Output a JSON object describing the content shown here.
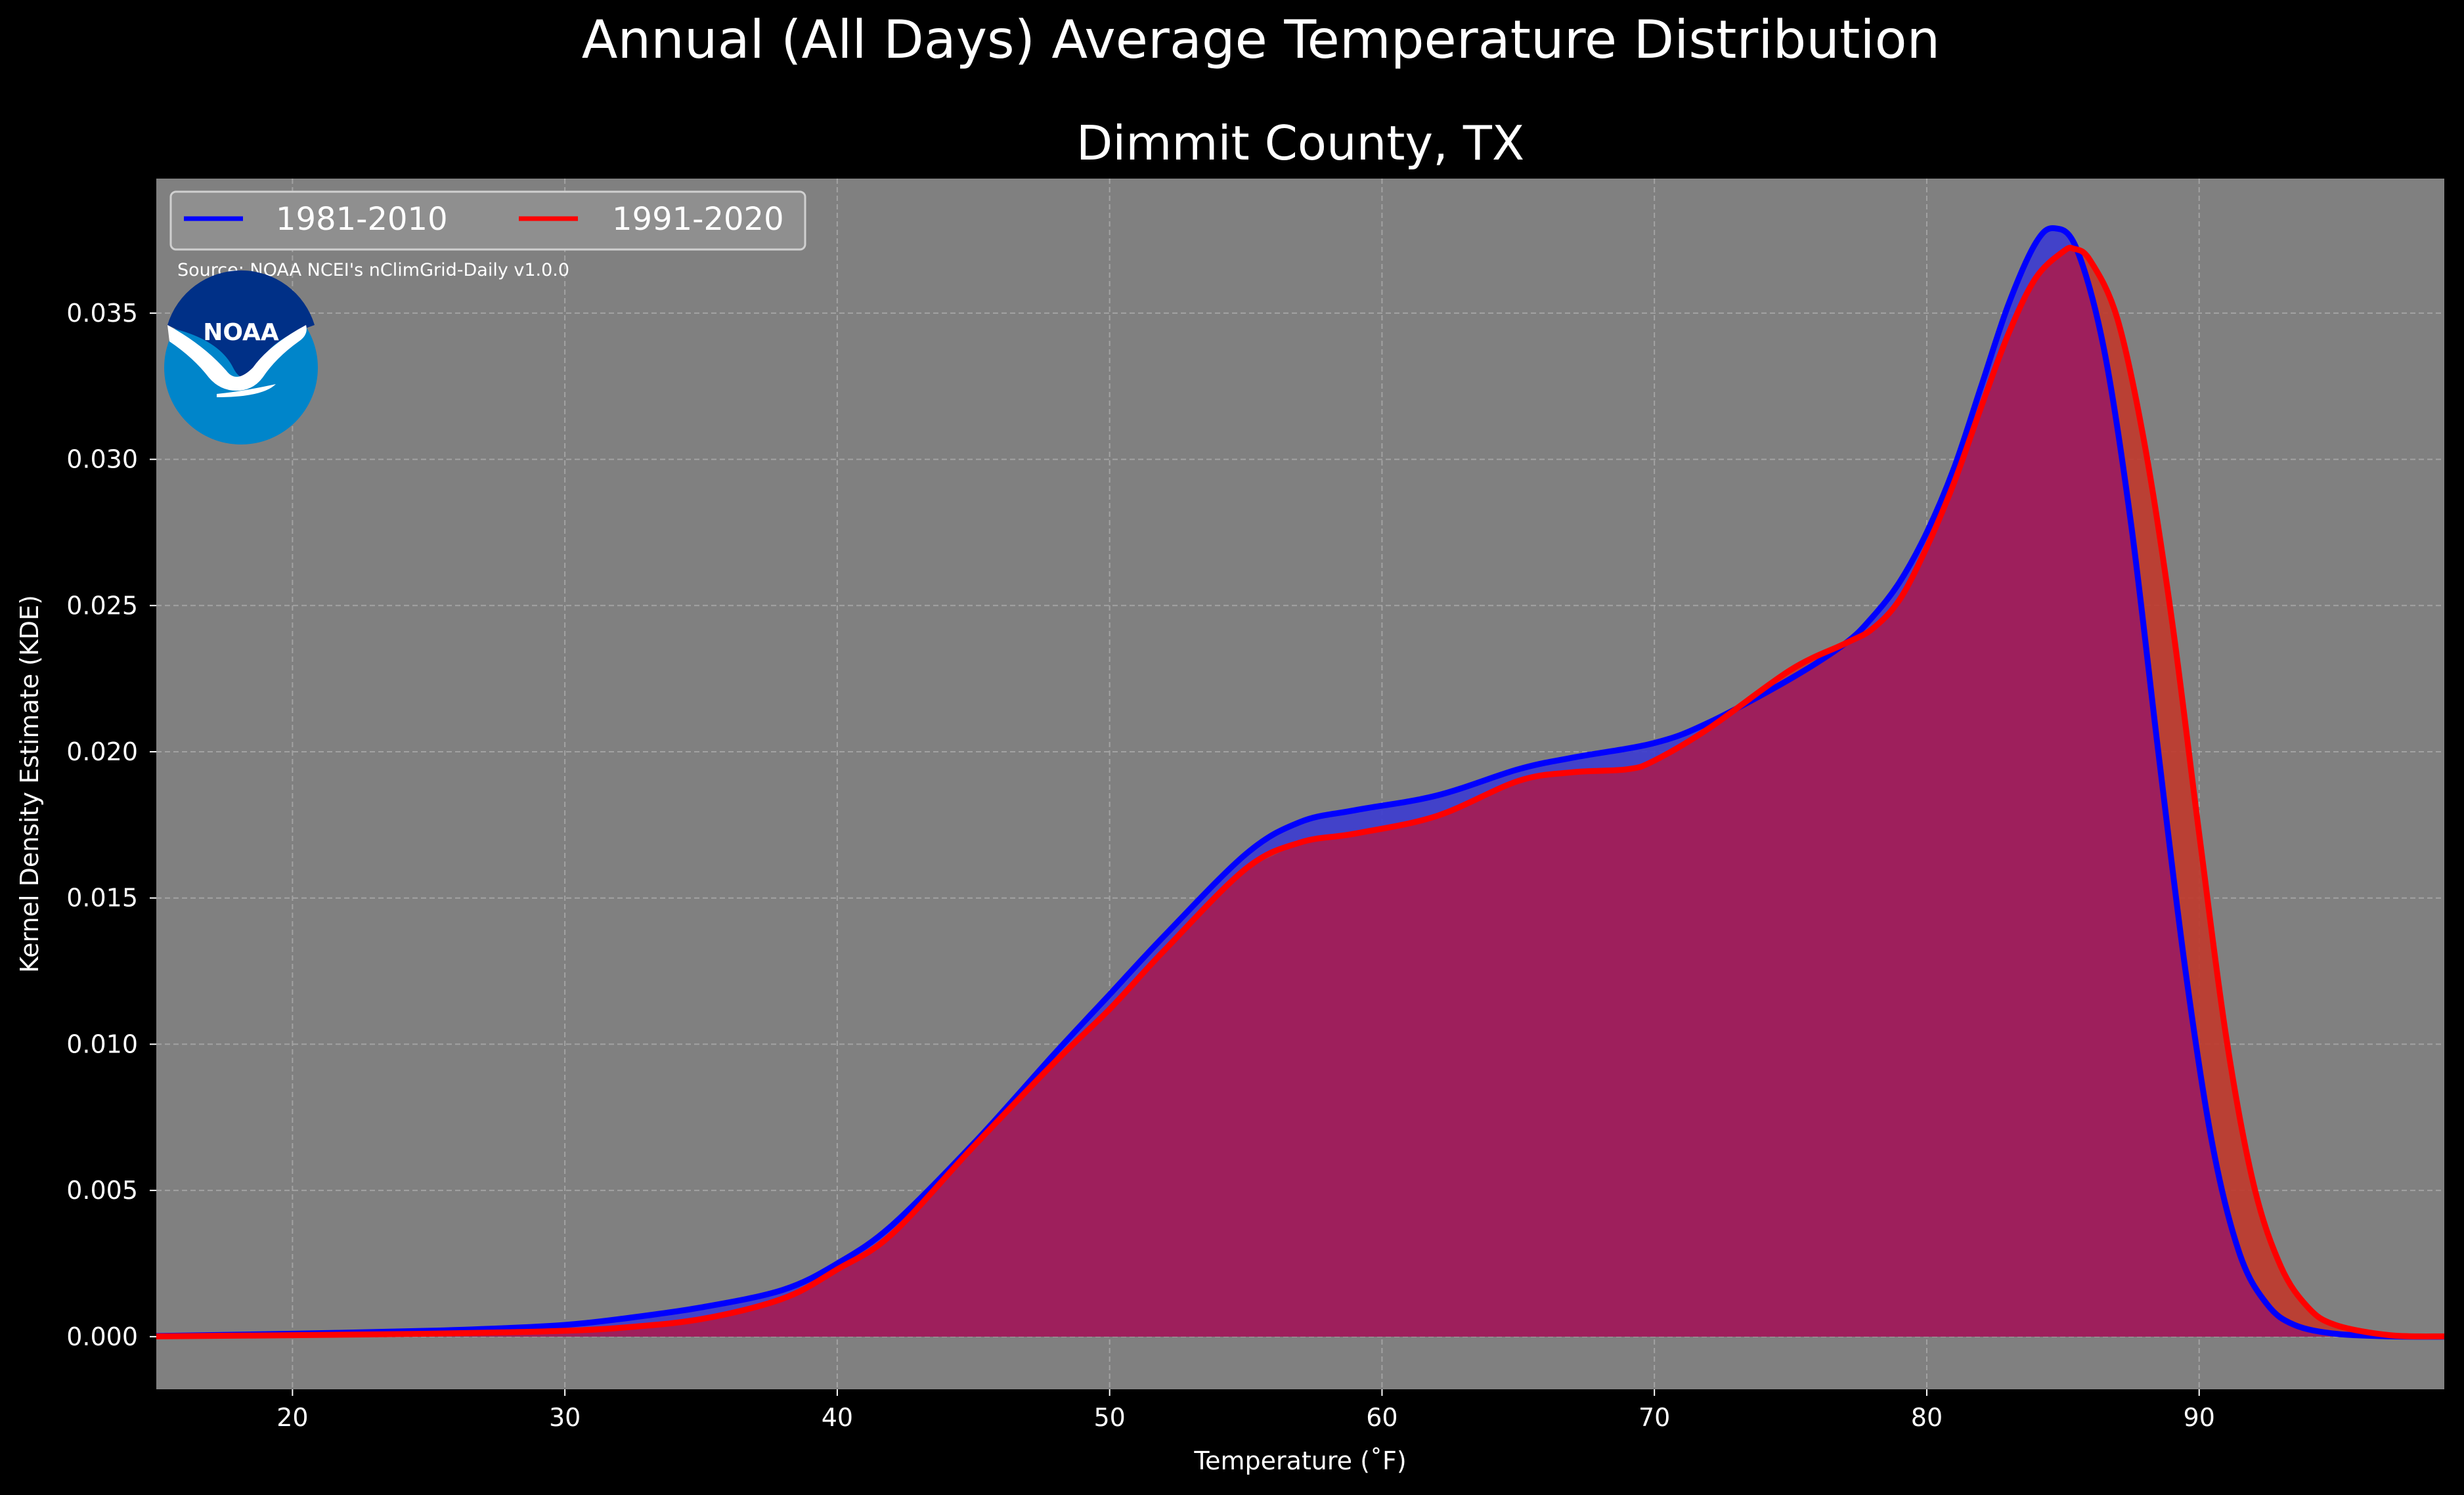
{
  "chart_data": {
    "type": "area",
    "suptitle": "Annual (All Days) Average Temperature Distribution",
    "title": "Dimmit County, TX",
    "xlabel": "Temperature (˚F)",
    "ylabel": "Kernel Density Estimate (KDE)",
    "xlim": [
      15,
      99
    ],
    "ylim": [
      -0.0018,
      0.0396
    ],
    "xticks": [
      20,
      30,
      40,
      50,
      60,
      70,
      80,
      90
    ],
    "yticks": [
      0.0,
      0.005,
      0.01,
      0.015,
      0.02,
      0.025,
      0.03,
      0.035
    ],
    "ytick_labels": [
      "0.000",
      "0.005",
      "0.010",
      "0.015",
      "0.020",
      "0.025",
      "0.030",
      "0.035"
    ],
    "grid": true,
    "legend_position": "top-left",
    "source_note": "Source: NOAA NCEI's nClimGrid-Daily v1.0.0",
    "logo_text": "NOAA",
    "colors": {
      "figure_bg": "#000000",
      "axes_bg": "#808080",
      "grid": "#b0b0b0",
      "overlap_fill": "#9e1f5c",
      "logo_outer": "#0085ca",
      "logo_inner": "#003087"
    },
    "series": [
      {
        "name": "1981-2010",
        "color": "#0000ff",
        "fill_color": "#3b3bd0",
        "x": [
          15,
          20,
          25,
          28,
          30,
          32,
          35,
          38,
          40,
          42,
          45,
          48,
          50,
          52,
          55,
          57,
          59,
          62,
          65,
          67,
          70,
          72,
          75,
          77,
          78,
          79,
          80,
          81,
          82,
          83,
          84,
          84.7,
          85.5,
          86.5,
          87.5,
          88.5,
          89.5,
          90.5,
          91.5,
          92.5,
          93.5,
          95,
          97,
          99
        ],
        "y": [
          2e-05,
          0.0001,
          0.0002,
          0.0003,
          0.0004,
          0.0006,
          0.001,
          0.0016,
          0.0025,
          0.0038,
          0.0066,
          0.0097,
          0.0117,
          0.0137,
          0.0165,
          0.0176,
          0.018,
          0.0185,
          0.0194,
          0.0198,
          0.0203,
          0.021,
          0.0225,
          0.0237,
          0.0246,
          0.0258,
          0.0275,
          0.0297,
          0.0325,
          0.0353,
          0.0374,
          0.0379,
          0.0372,
          0.0338,
          0.0278,
          0.02,
          0.0125,
          0.0065,
          0.0028,
          0.0011,
          0.0004,
          0.0001,
          1e-05,
          0.0
        ]
      },
      {
        "name": "1991-2020",
        "color": "#ff0000",
        "fill_color": "#c0392b",
        "x": [
          15,
          20,
          25,
          28,
          30,
          32,
          35,
          38,
          40,
          42,
          45,
          48,
          50,
          52,
          55,
          57,
          59,
          62,
          65,
          67,
          69,
          70,
          72,
          75,
          77,
          78,
          79,
          80,
          81,
          82,
          83,
          84,
          85,
          85.4,
          86,
          87,
          88,
          89,
          90,
          91,
          92,
          93,
          94,
          95,
          97,
          99
        ],
        "y": [
          1e-05,
          5e-05,
          0.0001,
          0.00015,
          0.0002,
          0.0003,
          0.0006,
          0.0013,
          0.0023,
          0.0035,
          0.0065,
          0.0094,
          0.0112,
          0.0132,
          0.016,
          0.0169,
          0.0172,
          0.0178,
          0.019,
          0.0193,
          0.0194,
          0.0197,
          0.0208,
          0.0228,
          0.0237,
          0.0242,
          0.0252,
          0.027,
          0.0292,
          0.0318,
          0.0343,
          0.0362,
          0.0371,
          0.0372,
          0.0368,
          0.0348,
          0.0305,
          0.0245,
          0.0172,
          0.0102,
          0.0052,
          0.0024,
          0.001,
          0.0004,
          5e-05,
          1e-05
        ]
      }
    ]
  }
}
